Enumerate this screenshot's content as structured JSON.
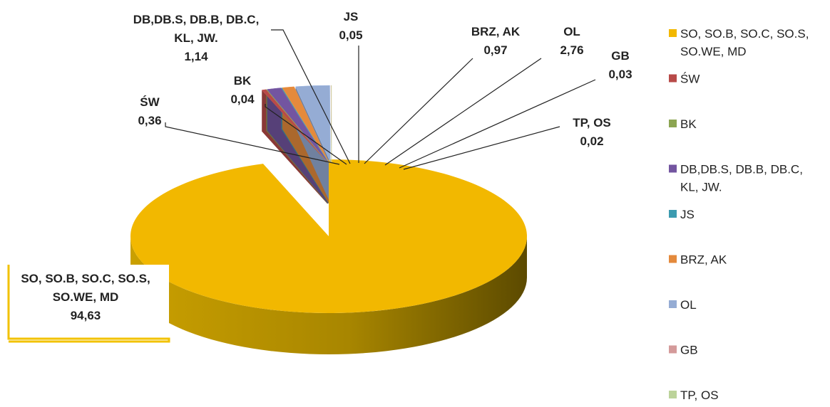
{
  "chart_data": {
    "type": "pie",
    "title": "",
    "decimal_separator": ",",
    "legend_position": "right",
    "slices": [
      {
        "name": "SO, SO.B, SO.C, SO.S, SO.WE, MD",
        "label_lines": [
          "SO, SO.B, SO.C, SO.S,",
          "SO.WE, MD"
        ],
        "legend_lines": [
          "SO, SO.B, SO.C, SO.S,",
          "SO.WE, MD"
        ],
        "value": 94.63,
        "value_label": "94,63",
        "color": "#f2b800"
      },
      {
        "name": "ŚW",
        "label_lines": [
          "ŚW"
        ],
        "legend_lines": [
          "ŚW"
        ],
        "value": 0.36,
        "value_label": "0,36",
        "color": "#b84a48"
      },
      {
        "name": "BK",
        "label_lines": [
          "BK"
        ],
        "legend_lines": [
          "BK"
        ],
        "value": 0.04,
        "value_label": "0,04",
        "color": "#8ca552"
      },
      {
        "name": "DB,DB.S, DB.B, DB.C, KL, JW.",
        "label_lines": [
          "DB,DB.S, DB.B, DB.C,",
          "KL, JW."
        ],
        "legend_lines": [
          "DB,DB.S, DB.B, DB.C,",
          "KL, JW."
        ],
        "value": 1.14,
        "value_label": "1,14",
        "color": "#7355a0"
      },
      {
        "name": "JS",
        "label_lines": [
          "JS"
        ],
        "legend_lines": [
          "JS"
        ],
        "value": 0.05,
        "value_label": "0,05",
        "color": "#3c9bb0"
      },
      {
        "name": "BRZ, AK",
        "label_lines": [
          "BRZ, AK"
        ],
        "legend_lines": [
          "BRZ, AK"
        ],
        "value": 0.97,
        "value_label": "0,97",
        "color": "#e48a3c"
      },
      {
        "name": "OL",
        "label_lines": [
          "OL"
        ],
        "legend_lines": [
          "OL"
        ],
        "value": 2.76,
        "value_label": "2,76",
        "color": "#95acd4"
      },
      {
        "name": "GB",
        "label_lines": [
          "GB"
        ],
        "legend_lines": [
          "GB"
        ],
        "value": 0.03,
        "value_label": "0,03",
        "color": "#d49a9a"
      },
      {
        "name": "TP, OS",
        "label_lines": [
          "TP, OS"
        ],
        "legend_lines": [
          "TP, OS"
        ],
        "value": 0.02,
        "value_label": "0,02",
        "color": "#bcd39a"
      }
    ]
  }
}
